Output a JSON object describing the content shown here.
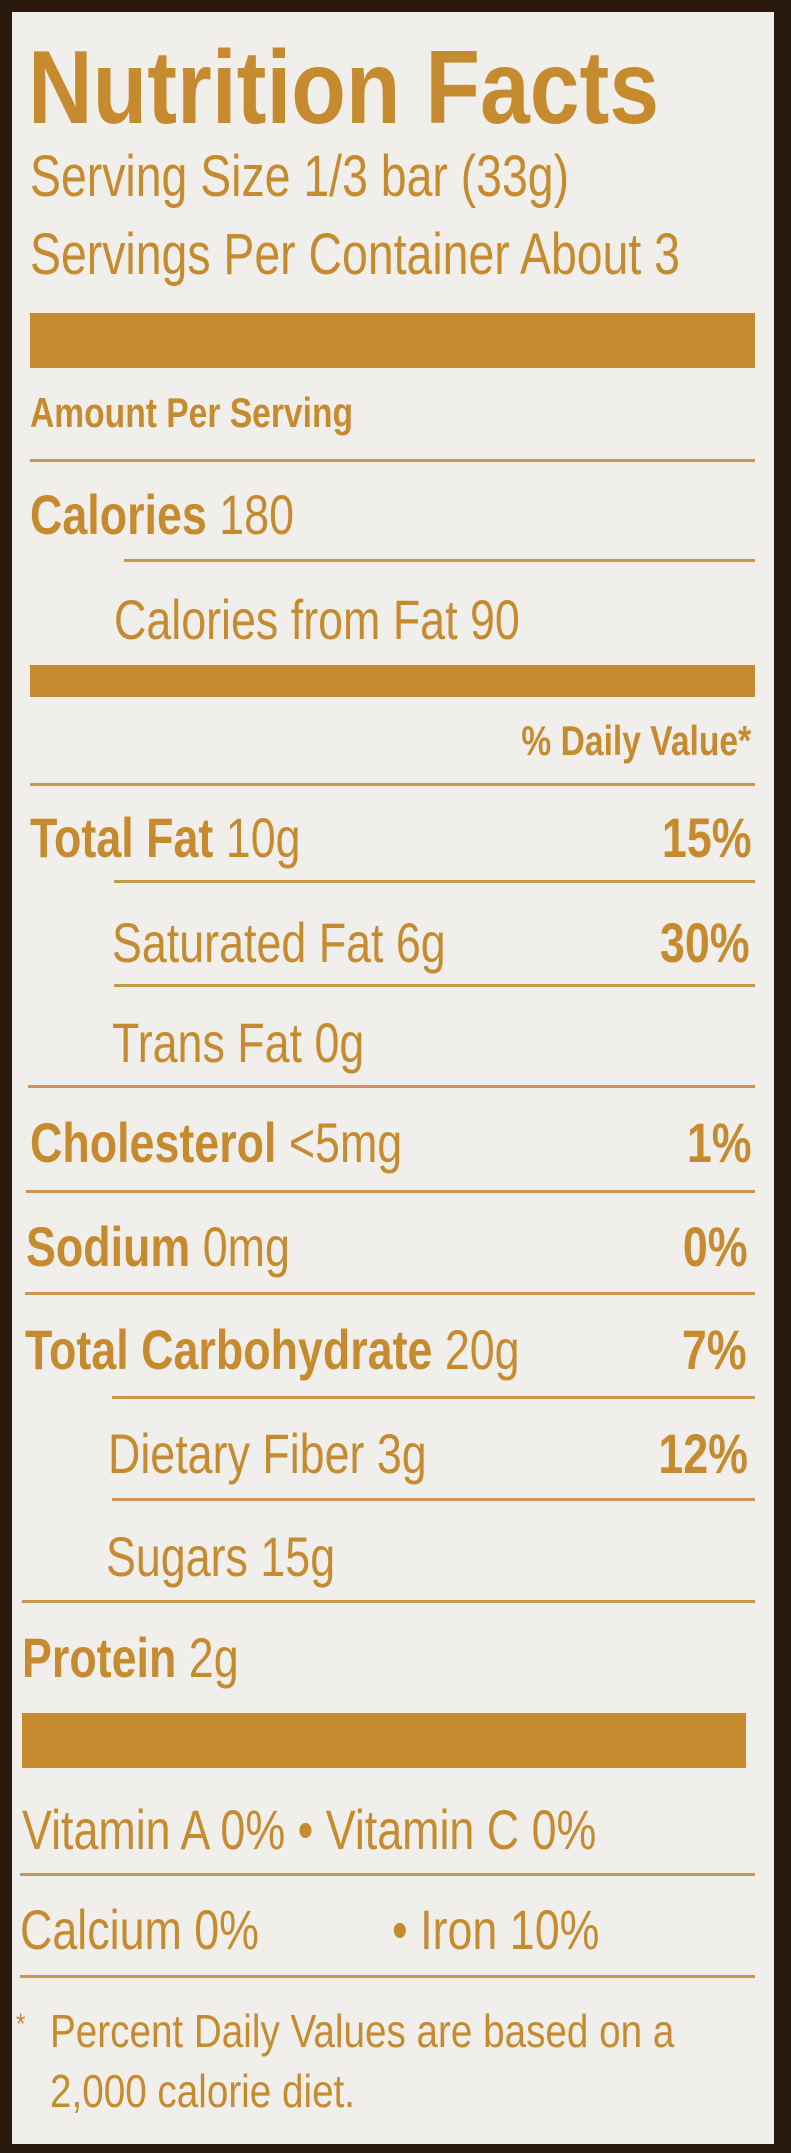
{
  "title": "Nutrition Facts",
  "serving_size": "Serving Size 1/3 bar (33g)",
  "servings_per_container": "Servings Per Container About 3",
  "amount_per_serving": "Amount Per Serving",
  "calories": {
    "label": "Calories",
    "value": "180"
  },
  "calories_from_fat": "Calories from Fat 90",
  "daily_value_header": "% Daily Value*",
  "nutrients": [
    {
      "label": "Total Fat",
      "amount": "10g",
      "dv": "15%"
    },
    {
      "label": "Saturated Fat 6g",
      "dv": "30%"
    },
    {
      "label": "Trans Fat 0g"
    },
    {
      "label": "Cholesterol",
      "amount": "<5mg",
      "dv": "1%"
    },
    {
      "label": "Sodium",
      "amount": "0mg",
      "dv": "0%"
    },
    {
      "label": "Total Carbohydrate",
      "amount": "20g",
      "dv": "7%"
    },
    {
      "label": "Dietary Fiber 3g",
      "dv": "12%"
    },
    {
      "label": "Sugars 15g"
    },
    {
      "label": "Protein",
      "amount": "2g"
    }
  ],
  "vitamins": {
    "vitamin_a": "Vitamin A 0%",
    "vitamin_c": "Vitamin C 0%",
    "calcium": "Calcium 0%",
    "iron": "Iron 10%",
    "bullet": "•"
  },
  "footnote": {
    "star": "*",
    "line1": "Percent Daily Values are based on a",
    "line2": "2,000 calorie diet."
  },
  "colors": {
    "ink": "#c68b2f",
    "background": "#f1efeb",
    "border": "#2a1a0e"
  }
}
